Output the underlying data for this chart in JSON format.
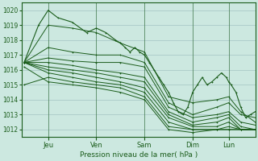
{
  "bg_color": "#cce8e0",
  "line_color": "#1a5c1a",
  "grid_color": "#99bbbb",
  "xlabel": "Pression niveau de la mer( hPa )",
  "ylim": [
    1011.5,
    1020.5
  ],
  "yticks": [
    1012,
    1013,
    1014,
    1015,
    1016,
    1017,
    1018,
    1019,
    1020
  ],
  "day_labels": [
    "Jeu",
    "Ven",
    "Sam",
    "Dim",
    "Lun"
  ],
  "day_positions": [
    0.5,
    1.5,
    2.5,
    3.5,
    4.25
  ],
  "xlim": [
    -0.05,
    4.8
  ],
  "figsize": [
    3.2,
    2.0
  ],
  "dpi": 100,
  "series": [
    {
      "x": [
        0.0,
        4.8
      ],
      "y": [
        1016.5,
        1020.0
      ],
      "pts": [
        [
          0.0,
          1016.5
        ],
        [
          0.3,
          1019.0
        ],
        [
          0.5,
          1020.0
        ],
        [
          0.7,
          1019.5
        ],
        [
          1.0,
          1019.2
        ],
        [
          1.3,
          1018.5
        ],
        [
          1.5,
          1018.8
        ],
        [
          1.7,
          1018.5
        ],
        [
          1.9,
          1018.0
        ],
        [
          2.0,
          1017.8
        ],
        [
          2.1,
          1017.5
        ],
        [
          2.2,
          1017.2
        ],
        [
          2.3,
          1017.5
        ],
        [
          2.4,
          1017.2
        ],
        [
          2.5,
          1017.0
        ],
        [
          2.6,
          1016.5
        ],
        [
          2.7,
          1016.0
        ],
        [
          2.8,
          1015.5
        ],
        [
          2.9,
          1015.0
        ],
        [
          3.0,
          1014.5
        ],
        [
          3.1,
          1013.8
        ],
        [
          3.2,
          1013.2
        ],
        [
          3.3,
          1013.0
        ],
        [
          3.4,
          1013.5
        ],
        [
          3.5,
          1014.5
        ],
        [
          3.6,
          1015.0
        ],
        [
          3.7,
          1015.5
        ],
        [
          3.8,
          1015.0
        ],
        [
          3.9,
          1015.2
        ],
        [
          4.0,
          1015.5
        ],
        [
          4.1,
          1015.8
        ],
        [
          4.2,
          1015.5
        ],
        [
          4.25,
          1015.2
        ],
        [
          4.3,
          1015.0
        ],
        [
          4.4,
          1014.5
        ],
        [
          4.5,
          1013.5
        ],
        [
          4.6,
          1012.8
        ],
        [
          4.7,
          1013.0
        ],
        [
          4.8,
          1013.2
        ]
      ]
    },
    {
      "x": [
        0.0,
        4.8
      ],
      "y": [
        1016.5,
        1019.0
      ],
      "pts": [
        [
          0.0,
          1016.5
        ],
        [
          0.5,
          1019.0
        ],
        [
          1.0,
          1018.8
        ],
        [
          1.5,
          1018.5
        ],
        [
          2.0,
          1017.8
        ],
        [
          2.5,
          1017.2
        ],
        [
          3.0,
          1014.2
        ],
        [
          3.5,
          1013.8
        ],
        [
          4.0,
          1014.0
        ],
        [
          4.25,
          1014.2
        ],
        [
          4.5,
          1013.2
        ],
        [
          4.8,
          1012.5
        ]
      ]
    },
    {
      "x": [
        0.0,
        4.8
      ],
      "y": [
        1016.5,
        1017.8
      ],
      "pts": [
        [
          0.0,
          1016.5
        ],
        [
          0.5,
          1017.5
        ],
        [
          1.0,
          1017.2
        ],
        [
          1.5,
          1017.0
        ],
        [
          2.0,
          1017.0
        ],
        [
          2.5,
          1016.5
        ],
        [
          3.0,
          1013.8
        ],
        [
          3.5,
          1013.0
        ],
        [
          4.0,
          1013.5
        ],
        [
          4.25,
          1013.8
        ],
        [
          4.5,
          1013.0
        ],
        [
          4.8,
          1012.8
        ]
      ]
    },
    {
      "x": [
        0.0,
        4.8
      ],
      "y": [
        1016.5,
        1016.5
      ],
      "pts": [
        [
          0.0,
          1016.5
        ],
        [
          0.5,
          1016.8
        ],
        [
          1.0,
          1016.6
        ],
        [
          1.5,
          1016.5
        ],
        [
          2.0,
          1016.5
        ],
        [
          2.5,
          1016.2
        ],
        [
          3.0,
          1013.5
        ],
        [
          3.5,
          1012.8
        ],
        [
          4.0,
          1013.0
        ],
        [
          4.25,
          1013.2
        ],
        [
          4.5,
          1012.5
        ],
        [
          4.8,
          1012.3
        ]
      ]
    },
    {
      "x": [
        0.0,
        4.8
      ],
      "y": [
        1016.5,
        1015.8
      ],
      "pts": [
        [
          0.0,
          1016.5
        ],
        [
          0.5,
          1016.5
        ],
        [
          1.0,
          1016.3
        ],
        [
          1.5,
          1016.0
        ],
        [
          2.0,
          1015.8
        ],
        [
          2.5,
          1015.5
        ],
        [
          3.0,
          1013.2
        ],
        [
          3.5,
          1012.5
        ],
        [
          4.0,
          1012.8
        ],
        [
          4.25,
          1013.0
        ],
        [
          4.5,
          1012.2
        ],
        [
          4.8,
          1012.0
        ]
      ]
    },
    {
      "x": [
        0.0,
        4.8
      ],
      "y": [
        1016.5,
        1015.2
      ],
      "pts": [
        [
          0.0,
          1016.5
        ],
        [
          0.5,
          1016.2
        ],
        [
          1.0,
          1016.0
        ],
        [
          1.5,
          1015.8
        ],
        [
          2.0,
          1015.5
        ],
        [
          2.5,
          1015.2
        ],
        [
          3.0,
          1013.0
        ],
        [
          3.5,
          1012.3
        ],
        [
          4.0,
          1012.5
        ],
        [
          4.25,
          1012.8
        ],
        [
          4.5,
          1012.0
        ],
        [
          4.8,
          1012.0
        ]
      ]
    },
    {
      "x": [
        0.0,
        4.8
      ],
      "y": [
        1016.5,
        1014.5
      ],
      "pts": [
        [
          0.0,
          1016.5
        ],
        [
          0.5,
          1016.0
        ],
        [
          1.0,
          1015.8
        ],
        [
          1.5,
          1015.5
        ],
        [
          2.0,
          1015.2
        ],
        [
          2.5,
          1014.8
        ],
        [
          3.0,
          1012.8
        ],
        [
          3.5,
          1012.2
        ],
        [
          4.0,
          1012.2
        ],
        [
          4.25,
          1012.5
        ],
        [
          4.5,
          1012.0
        ],
        [
          4.8,
          1012.0
        ]
      ]
    },
    {
      "x": [
        0.0,
        4.8
      ],
      "y": [
        1016.5,
        1013.8
      ],
      "pts": [
        [
          0.0,
          1016.5
        ],
        [
          0.5,
          1015.8
        ],
        [
          1.0,
          1015.5
        ],
        [
          1.5,
          1015.2
        ],
        [
          2.0,
          1015.0
        ],
        [
          2.5,
          1014.5
        ],
        [
          3.0,
          1012.5
        ],
        [
          3.5,
          1012.0
        ],
        [
          4.0,
          1012.0
        ],
        [
          4.25,
          1012.2
        ],
        [
          4.5,
          1012.0
        ],
        [
          4.8,
          1012.0
        ]
      ]
    },
    {
      "x": [
        0.0,
        4.8
      ],
      "y": [
        1015.0,
        1013.0
      ],
      "pts": [
        [
          0.0,
          1015.0
        ],
        [
          0.5,
          1015.5
        ],
        [
          1.0,
          1015.2
        ],
        [
          1.5,
          1015.0
        ],
        [
          2.0,
          1014.8
        ],
        [
          2.5,
          1014.2
        ],
        [
          3.0,
          1012.2
        ],
        [
          3.5,
          1012.0
        ],
        [
          4.0,
          1012.0
        ],
        [
          4.25,
          1012.0
        ],
        [
          4.5,
          1012.0
        ],
        [
          4.8,
          1012.0
        ]
      ]
    },
    {
      "x": [
        0.0,
        4.8
      ],
      "y": [
        1016.5,
        1012.5
      ],
      "pts": [
        [
          0.0,
          1016.2
        ],
        [
          0.5,
          1015.2
        ],
        [
          1.0,
          1015.0
        ],
        [
          1.5,
          1014.8
        ],
        [
          2.0,
          1014.5
        ],
        [
          2.5,
          1014.0
        ],
        [
          3.0,
          1012.0
        ],
        [
          3.5,
          1011.8
        ],
        [
          4.0,
          1012.0
        ],
        [
          4.25,
          1012.0
        ],
        [
          4.5,
          1012.0
        ],
        [
          4.8,
          1012.0
        ]
      ]
    }
  ]
}
